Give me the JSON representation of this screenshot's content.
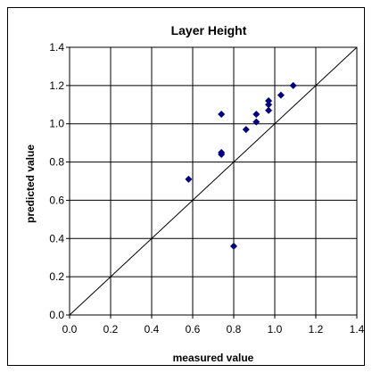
{
  "chart_data": {
    "type": "scatter",
    "title": "Layer Height",
    "xlabel": "measured value",
    "ylabel": "predicted value",
    "xlim": [
      0,
      1.4
    ],
    "ylim": [
      0,
      1.4
    ],
    "x_ticks": [
      "0.0",
      "0.2",
      "0.4",
      "0.6",
      "0.8",
      "1.0",
      "1.2",
      "1.4"
    ],
    "y_ticks": [
      "0.0",
      "0.2",
      "0.4",
      "0.6",
      "0.8",
      "1.0",
      "1.2",
      "1.4"
    ],
    "grid": true,
    "legend": "none",
    "marker_color": "#000080",
    "reference_line": {
      "from": [
        0,
        0
      ],
      "to": [
        1.4,
        1.4
      ]
    },
    "series": [
      {
        "points": [
          {
            "x": 0.58,
            "y": 0.71
          },
          {
            "x": 0.74,
            "y": 1.05
          },
          {
            "x": 0.74,
            "y": 0.85
          },
          {
            "x": 0.74,
            "y": 0.84
          },
          {
            "x": 0.8,
            "y": 0.36
          },
          {
            "x": 0.86,
            "y": 0.97
          },
          {
            "x": 0.91,
            "y": 1.05
          },
          {
            "x": 0.91,
            "y": 1.01
          },
          {
            "x": 0.97,
            "y": 1.12
          },
          {
            "x": 0.97,
            "y": 1.1
          },
          {
            "x": 0.97,
            "y": 1.07
          },
          {
            "x": 1.03,
            "y": 1.15
          },
          {
            "x": 1.09,
            "y": 1.2
          }
        ]
      }
    ]
  }
}
